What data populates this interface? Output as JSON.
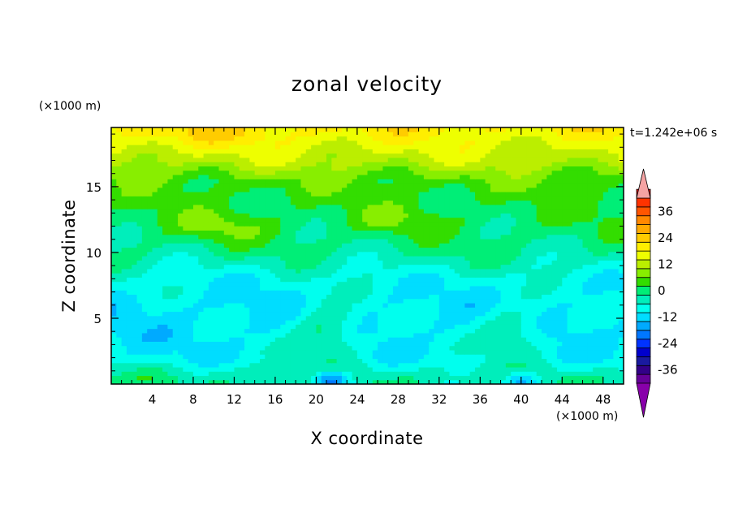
{
  "chart_data": {
    "type": "heatmap",
    "title": "zonal velocity",
    "xlabel": "X coordinate",
    "ylabel": "Z coordinate",
    "x_unit": "(×1000 m)",
    "y_unit": "(×1000 m)",
    "time_label": "t=1.242e+06 s",
    "xlim": [
      0,
      50
    ],
    "ylim": [
      0,
      19.5
    ],
    "x_ticks": [
      4,
      8,
      12,
      16,
      20,
      24,
      28,
      32,
      36,
      40,
      44,
      48
    ],
    "y_ticks": [
      5,
      10,
      15
    ],
    "grid": false,
    "colorbar": {
      "min": -42,
      "max": 42,
      "step": 4,
      "labels": [
        36,
        24,
        12,
        0,
        -12,
        -24,
        -36
      ],
      "extend": "both",
      "colors": [
        "#660099",
        "#330088",
        "#1a1aa0",
        "#0000cc",
        "#0033ff",
        "#0077ff",
        "#00aaff",
        "#00ddff",
        "#00ffee",
        "#00eebb",
        "#00ee77",
        "#33dd00",
        "#88ee00",
        "#bbee00",
        "#eeff00",
        "#ffee00",
        "#ffcc00",
        "#ffaa00",
        "#ff8800",
        "#ff5500",
        "#ff3300",
        "#dd0000"
      ],
      "under_color": "#8800aa",
      "over_color": "#f5a3a3"
    },
    "field_profile": {
      "z": [
        0.5,
        2,
        4,
        6,
        8,
        10,
        12,
        14,
        15.5,
        17,
        18,
        19.3
      ],
      "u": [
        -2,
        -9,
        -11,
        -11,
        -8,
        -2,
        1,
        2,
        5,
        12,
        15,
        19
      ]
    },
    "features": [
      {
        "kind": "jet_core",
        "x": 10,
        "z": 19,
        "value": 24
      },
      {
        "kind": "positive_region",
        "x": 21,
        "z": 4,
        "value": 3
      },
      {
        "kind": "positive_region",
        "x": 39,
        "z": 4,
        "value": 3
      },
      {
        "kind": "negative_core",
        "x": 21.5,
        "z": 0.3,
        "value": -30
      },
      {
        "kind": "negative_core",
        "x": 40,
        "z": 0.3,
        "value": -22
      }
    ]
  }
}
